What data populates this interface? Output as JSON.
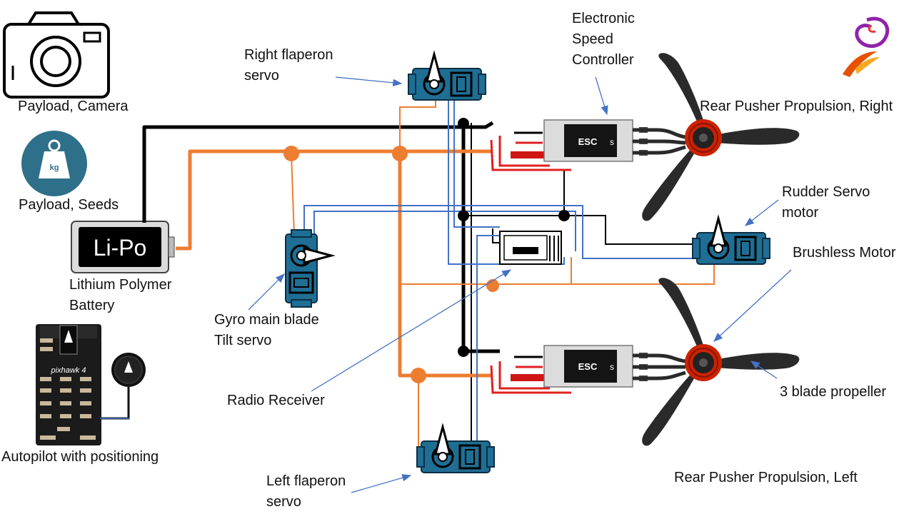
{
  "labels": {
    "camera": "Payload, Camera",
    "seeds": "Payload, Seeds",
    "battery": "Lithium Polymer\nBattery",
    "autopilot": "Autopilot with positioning",
    "right_flaperon": "Right flaperon\nservo",
    "gyro": "Gyro main blade\nTilt servo",
    "radio": "Radio Receiver",
    "left_flaperon": "Left flaperon\nservo",
    "esc": "Electronic\nSpeed\nController",
    "rear_right": "Rear Pusher Propulsion, Right",
    "rudder": "Rudder Servo\nmotor",
    "brushless": "Brushless Motor",
    "propeller": "3 blade propeller",
    "rear_left": "Rear Pusher Propulsion, Left"
  },
  "battery_text": "Li-Po",
  "esc_text": "ESC",
  "esc_side": "s",
  "weight_text": "kg",
  "pixhawk_text": "pixhawk 4",
  "colors": {
    "power_wire": "#000000",
    "signal_wire": "#ED7D31",
    "data_wire": "#4472C4",
    "servo": "#1F6E94",
    "arrow": "#4472C4",
    "hub": "#CC2200",
    "seeds_badge": "#2E6F8A"
  },
  "icons": [
    "camera-icon",
    "weight-icon",
    "battery-icon",
    "autopilot-icon",
    "gps-icon",
    "servo-icon",
    "esc-icon",
    "receiver-icon",
    "propeller-icon",
    "logo-icon"
  ]
}
